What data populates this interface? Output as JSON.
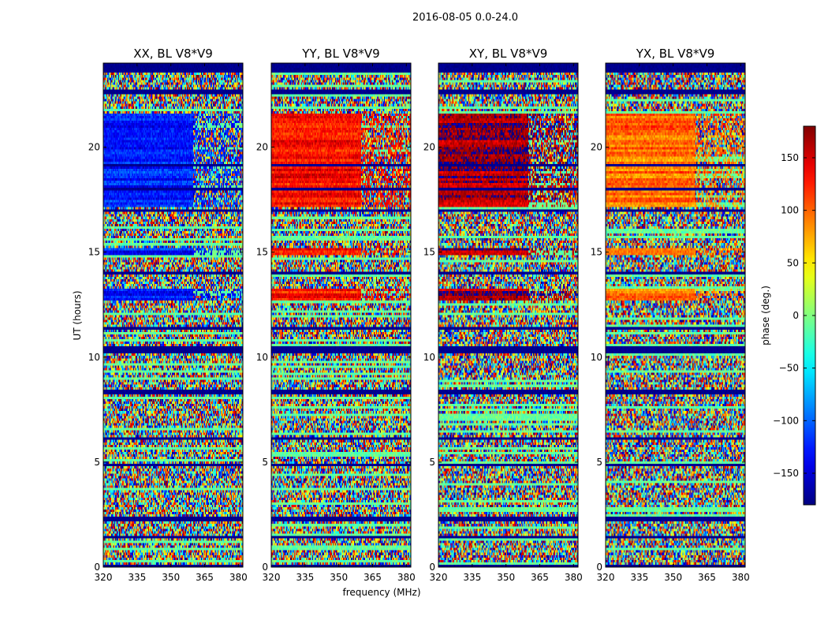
{
  "chart_data": {
    "type": "heatmap",
    "suptitle": "2016-08-05 0.0-24.0",
    "xlabel": "frequency (MHz)",
    "ylabel": "UT (hours)",
    "xlim": [
      320,
      382
    ],
    "ylim": [
      0,
      24
    ],
    "xticks": [
      320,
      335,
      350,
      365,
      380
    ],
    "yticks": [
      0,
      5,
      10,
      15,
      20
    ],
    "colormap": "jet",
    "colorbar": {
      "label": "phase (deg.)",
      "range": [
        -180,
        180
      ],
      "ticks": [
        -150,
        -100,
        -50,
        0,
        50,
        100,
        150
      ],
      "tick_labels": [
        "−150",
        "−100",
        "−50",
        "0",
        "50",
        "100",
        "150"
      ]
    },
    "panels": [
      {
        "title": "XX, BL V8*V9",
        "coherent_phase_deg": -125
      },
      {
        "title": "YY, BL V8*V9",
        "coherent_phase_deg": 130
      },
      {
        "title": "XY, BL V8*V9",
        "coherent_phase_deg": 165
      },
      {
        "title": "YX, BL V8*V9",
        "coherent_phase_deg": 95
      }
    ],
    "flagged_phase_deg": -180,
    "coherent_intervals_hours": [
      [
        17.2,
        21.6
      ],
      [
        12.7,
        13.2
      ],
      [
        14.9,
        15.2
      ]
    ],
    "coherent_edge_mhz": 360,
    "flagged_intervals_hours": [
      [
        23.6,
        24.0
      ],
      [
        22.5,
        22.7
      ],
      [
        10.2,
        10.5
      ],
      [
        8.2,
        8.4
      ],
      [
        6.1,
        6.2
      ],
      [
        4.8,
        4.9
      ],
      [
        2.2,
        2.4
      ],
      [
        1.4,
        1.5
      ],
      [
        0.05,
        0.15
      ],
      [
        16.9,
        17.0
      ],
      [
        14.0,
        14.1
      ],
      [
        11.3,
        11.4
      ],
      [
        19.1,
        19.2
      ],
      [
        18.0,
        18.1
      ]
    ]
  }
}
